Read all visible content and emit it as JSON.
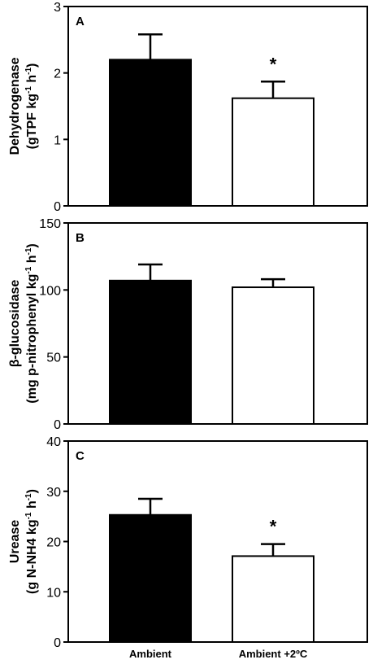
{
  "chart_data": [
    {
      "type": "bar",
      "panel_label": "A",
      "categories": [
        "Ambient",
        "Ambient +2ºC"
      ],
      "values": [
        2.2,
        1.62
      ],
      "errors": [
        0.38,
        0.25
      ],
      "significance": [
        "",
        "*"
      ],
      "ylabel_line1": "Dehydrogenase",
      "ylabel_line2_parts": [
        "(gTPF kg",
        "-1",
        " h",
        "-1",
        ")"
      ],
      "ylim": [
        0,
        3
      ],
      "yticks": [
        0,
        1,
        2,
        3
      ],
      "bar_colors": [
        "#000000",
        "#ffffff"
      ]
    },
    {
      "type": "bar",
      "panel_label": "B",
      "categories": [
        "Ambient",
        "Ambient +2ºC"
      ],
      "values": [
        107,
        102
      ],
      "errors": [
        12,
        6
      ],
      "significance": [
        "",
        ""
      ],
      "ylabel_line1": "β-glucosidase",
      "ylabel_line2_parts": [
        "(mg p-nitrophenyl kg",
        "-1",
        " h",
        "-1",
        ")"
      ],
      "ylim": [
        0,
        150
      ],
      "yticks": [
        0,
        50,
        100,
        150
      ],
      "bar_colors": [
        "#000000",
        "#ffffff"
      ]
    },
    {
      "type": "bar",
      "panel_label": "C",
      "categories": [
        "Ambient",
        "Ambient +2ºC"
      ],
      "values": [
        25.3,
        17.1
      ],
      "errors": [
        3.2,
        2.4
      ],
      "significance": [
        "",
        "*"
      ],
      "ylabel_line1": "Urease",
      "ylabel_line2_parts": [
        "(g N-NH4 kg",
        "-1",
        " h",
        "-1",
        ")"
      ],
      "ylim": [
        0,
        40
      ],
      "yticks": [
        0,
        10,
        20,
        30,
        40
      ],
      "bar_colors": [
        "#000000",
        "#ffffff"
      ]
    }
  ],
  "x_axis": {
    "categories": [
      "Ambient",
      "Ambient +2ºC"
    ]
  }
}
